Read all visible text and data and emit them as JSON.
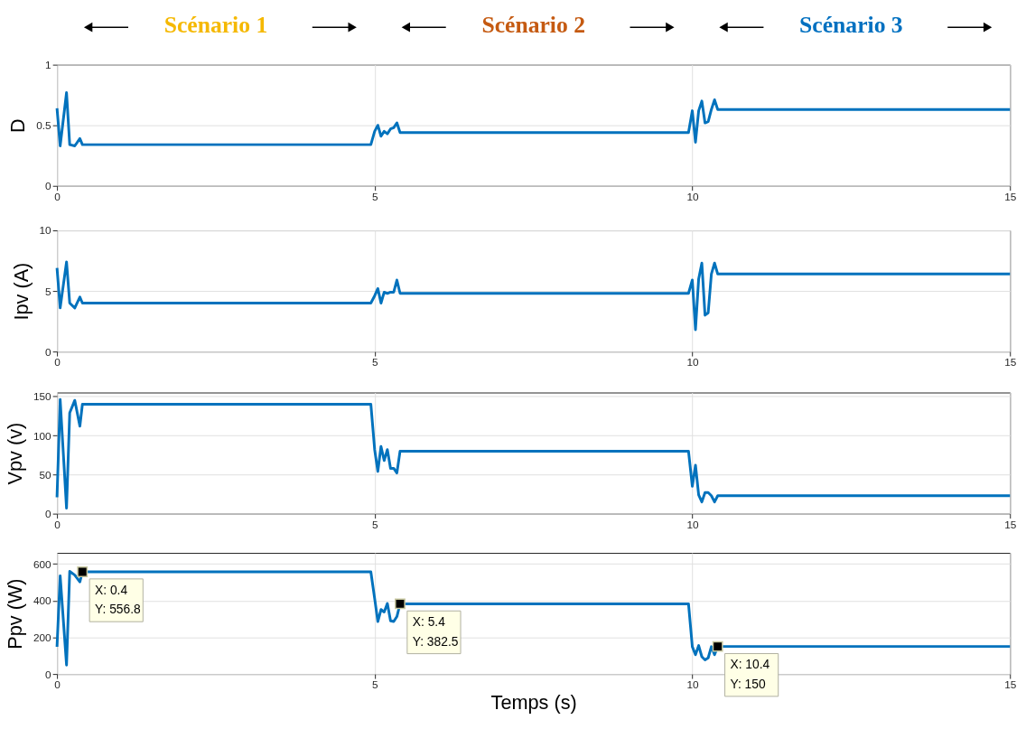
{
  "chart_data": [
    {
      "type": "line",
      "ylabel": "D",
      "annotations": [
        "Scénario 1",
        "Scénario 2",
        "Scénario 3"
      ],
      "xlim": [
        0,
        15
      ],
      "xticks": [
        0,
        5,
        10,
        15
      ],
      "ylim": [
        0,
        1
      ],
      "yticks": [
        0,
        0.5,
        1
      ],
      "grid": true,
      "x": [
        0,
        0.05,
        0.15,
        0.2,
        0.28,
        0.36,
        0.4,
        4.94,
        5.0,
        5.05,
        5.1,
        5.15,
        5.2,
        5.25,
        5.3,
        5.35,
        5.4,
        9.94,
        10.0,
        10.05,
        10.1,
        10.15,
        10.2,
        10.25,
        10.3,
        10.35,
        10.4,
        15
      ],
      "series": [
        {
          "color": "#0072bd",
          "values": [
            0.64,
            0.33,
            0.77,
            0.34,
            0.33,
            0.39,
            0.34,
            0.34,
            0.45,
            0.5,
            0.41,
            0.45,
            0.43,
            0.47,
            0.48,
            0.52,
            0.44,
            0.44,
            0.62,
            0.36,
            0.62,
            0.7,
            0.52,
            0.53,
            0.63,
            0.71,
            0.63,
            0.63
          ]
        }
      ]
    },
    {
      "type": "line",
      "ylabel": "Ipv (A)",
      "xlim": [
        0,
        15
      ],
      "xticks": [
        0,
        5,
        10,
        15
      ],
      "ylim": [
        0,
        10
      ],
      "yticks": [
        0,
        5,
        10
      ],
      "grid": true,
      "x": [
        0,
        0.05,
        0.15,
        0.2,
        0.28,
        0.36,
        0.4,
        4.94,
        5.0,
        5.05,
        5.1,
        5.15,
        5.2,
        5.25,
        5.3,
        5.35,
        5.4,
        9.94,
        10.0,
        10.05,
        10.1,
        10.15,
        10.2,
        10.25,
        10.3,
        10.35,
        10.4,
        15
      ],
      "series": [
        {
          "color": "#0072bd",
          "values": [
            6.9,
            3.6,
            7.4,
            4.0,
            3.6,
            4.5,
            4.0,
            4.0,
            4.6,
            5.2,
            4.0,
            4.9,
            4.8,
            4.9,
            4.9,
            5.9,
            4.8,
            4.8,
            5.9,
            1.8,
            6.0,
            7.3,
            3.0,
            3.2,
            6.4,
            7.3,
            6.4,
            6.4
          ]
        }
      ]
    },
    {
      "type": "line",
      "ylabel": "Vpv (v)",
      "xlim": [
        0,
        15
      ],
      "xticks": [
        0,
        5,
        10,
        15
      ],
      "ylim": [
        0,
        155
      ],
      "yticks": [
        0,
        50,
        100,
        150
      ],
      "grid": true,
      "x": [
        0,
        0.05,
        0.15,
        0.2,
        0.28,
        0.36,
        0.4,
        4.94,
        5.0,
        5.05,
        5.1,
        5.15,
        5.2,
        5.25,
        5.3,
        5.35,
        5.4,
        9.94,
        10.0,
        10.05,
        10.1,
        10.15,
        10.2,
        10.25,
        10.3,
        10.35,
        10.4,
        15
      ],
      "series": [
        {
          "color": "#0072bd",
          "values": [
            21,
            146,
            7,
            129,
            145,
            112,
            140,
            140,
            82,
            54,
            86,
            68,
            82,
            58,
            58,
            52,
            80,
            80,
            35,
            62,
            24,
            15,
            27,
            27,
            23,
            15,
            23,
            23
          ]
        }
      ]
    },
    {
      "type": "line",
      "ylabel": "Ppv (W)",
      "xlabel": "Temps (s)",
      "xlim": [
        0,
        15
      ],
      "xticks": [
        0,
        5,
        10,
        15
      ],
      "ylim": [
        0,
        660
      ],
      "yticks": [
        0,
        200,
        400,
        600
      ],
      "grid": true,
      "annotations": [
        {
          "text": "X: 0.4\nY: 556.8",
          "x": 0.4,
          "y": 556.8
        },
        {
          "text": "X: 5.4\nY: 382.5",
          "x": 5.4,
          "y": 382.5
        },
        {
          "text": "X: 10.4\nY: 150",
          "x": 10.4,
          "y": 150
        }
      ],
      "x": [
        0,
        0.05,
        0.15,
        0.2,
        0.28,
        0.36,
        0.4,
        4.94,
        5.0,
        5.05,
        5.1,
        5.15,
        5.2,
        5.25,
        5.3,
        5.35,
        5.4,
        9.94,
        10.0,
        10.05,
        10.1,
        10.15,
        10.2,
        10.25,
        10.3,
        10.35,
        10.4,
        15
      ],
      "series": [
        {
          "color": "#0072bd",
          "values": [
            148,
            535,
            49,
            559,
            539,
            502,
            556.8,
            556.8,
            411,
            286,
            351,
            338,
            384,
            290,
            286,
            313,
            382.5,
            382.5,
            149,
            105,
            155,
            94,
            77,
            88,
            149,
            105,
            150,
            150
          ]
        }
      ]
    }
  ]
}
